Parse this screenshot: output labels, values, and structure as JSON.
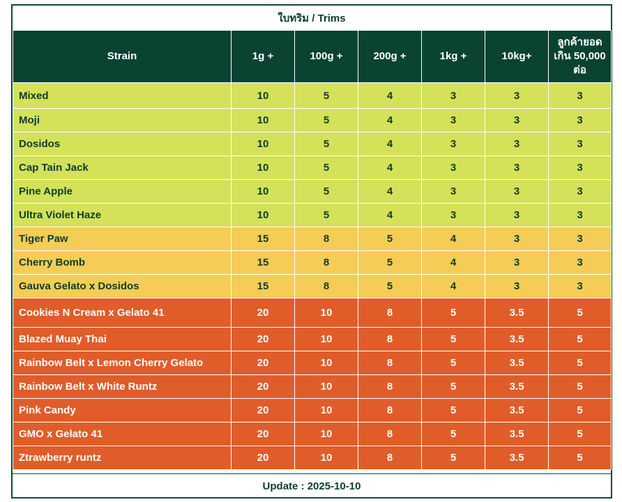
{
  "title": "ใบทริม / Trims",
  "headers": [
    "Strain",
    "1g +",
    "100g +",
    "200g +",
    "1kg +",
    "10kg+",
    "ลูกค้ายอด เกิน 50,000 ต่อ"
  ],
  "rows": [
    {
      "strain": "Mixed",
      "prices": [
        "10",
        "5",
        "4",
        "3",
        "3",
        "3"
      ],
      "tier": "green"
    },
    {
      "strain": "Moji",
      "prices": [
        "10",
        "5",
        "4",
        "3",
        "3",
        "3"
      ],
      "tier": "green"
    },
    {
      "strain": "Dosidos",
      "prices": [
        "10",
        "5",
        "4",
        "3",
        "3",
        "3"
      ],
      "tier": "green"
    },
    {
      "strain": "Cap Tain Jack",
      "prices": [
        "10",
        "5",
        "4",
        "3",
        "3",
        "3"
      ],
      "tier": "green"
    },
    {
      "strain": "Pine Apple",
      "prices": [
        "10",
        "5",
        "4",
        "3",
        "3",
        "3"
      ],
      "tier": "green"
    },
    {
      "strain": "Ultra Violet Haze",
      "prices": [
        "10",
        "5",
        "4",
        "3",
        "3",
        "3"
      ],
      "tier": "green"
    },
    {
      "strain": "Tiger Paw",
      "prices": [
        "15",
        "8",
        "5",
        "4",
        "3",
        "3"
      ],
      "tier": "yellow"
    },
    {
      "strain": "Cherry Bomb",
      "prices": [
        "15",
        "8",
        "5",
        "4",
        "3",
        "3"
      ],
      "tier": "yellow"
    },
    {
      "strain": "Gauva Gelato x Dosidos",
      "prices": [
        "15",
        "8",
        "5",
        "4",
        "3",
        "3"
      ],
      "tier": "yellow"
    },
    {
      "strain": "Cookies N Cream x Gelato 41",
      "prices": [
        "20",
        "10",
        "8",
        "5",
        "3.5",
        "5"
      ],
      "tier": "orange"
    },
    {
      "strain": "Blazed Muay Thai",
      "prices": [
        "20",
        "10",
        "8",
        "5",
        "3.5",
        "5"
      ],
      "tier": "orange"
    },
    {
      "strain": "Rainbow Belt x Lemon Cherry Gelato",
      "prices": [
        "20",
        "10",
        "8",
        "5",
        "3.5",
        "5"
      ],
      "tier": "orange"
    },
    {
      "strain": "Rainbow Belt x White Runtz",
      "prices": [
        "20",
        "10",
        "8",
        "5",
        "3.5",
        "5"
      ],
      "tier": "orange"
    },
    {
      "strain": "Pink Candy",
      "prices": [
        "20",
        "10",
        "8",
        "5",
        "3.5",
        "5"
      ],
      "tier": "orange"
    },
    {
      "strain": "GMO x Gelato 41",
      "prices": [
        "20",
        "10",
        "8",
        "5",
        "3.5",
        "5"
      ],
      "tier": "orange"
    },
    {
      "strain": "Ztrawberry runtz",
      "prices": [
        "20",
        "10",
        "8",
        "5",
        "3.5",
        "5"
      ],
      "tier": "orange"
    }
  ],
  "footer": "Update : 2025-10-10",
  "colors": {
    "header_bg": "#0a4331",
    "green_tier": "#d4e159",
    "yellow_tier": "#f5cc55",
    "orange_tier": "#e05d2a",
    "text_dark": "#0b3d2c"
  }
}
